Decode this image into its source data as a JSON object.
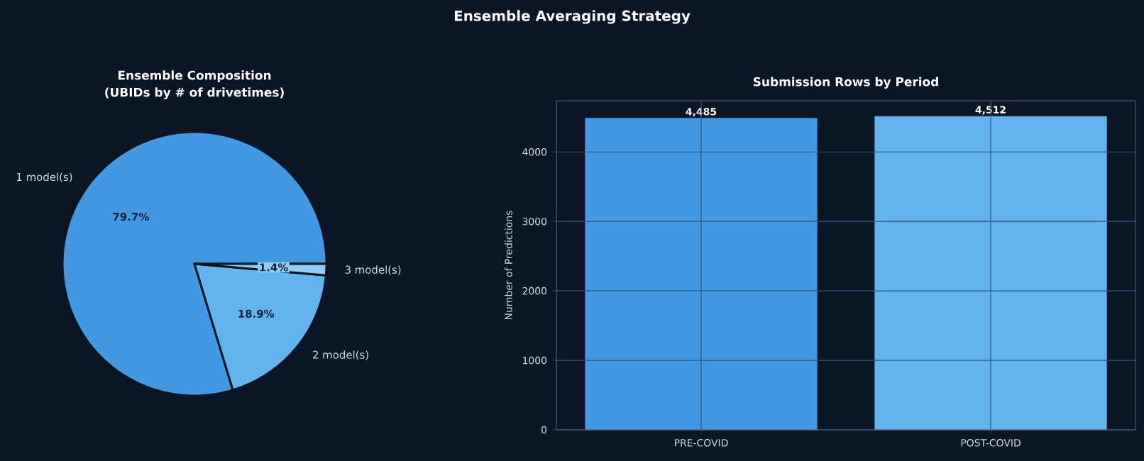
{
  "chart_data": [
    {
      "type": "pie",
      "title": "Ensemble Composition",
      "subtitle": "(UBIDs by # of drivetimes)",
      "annotations": [
        "Ensemble Averaging Strategy"
      ],
      "categories": [
        "1 model(s)",
        "2 model(s)",
        "3 model(s)"
      ],
      "values": [
        79.7,
        18.9,
        1.4
      ],
      "colors": [
        "#4299e1",
        "#63b3ed",
        "#90cdf4"
      ],
      "value_labels": [
        "79.7%",
        "18.9%",
        "1.4%"
      ]
    },
    {
      "type": "bar",
      "title": "Submission Rows by Period",
      "ylabel": "Number of Predictions",
      "categories": [
        "PRE-COVID",
        "POST-COVID"
      ],
      "values": [
        4485,
        4512
      ],
      "colors": [
        "#4299e1",
        "#63b3ed"
      ],
      "value_labels": [
        "4,485",
        "4,512"
      ],
      "ylim": [
        0,
        4738
      ],
      "yticks": [
        0,
        1000,
        2000,
        3000,
        4000
      ],
      "grid": true
    }
  ]
}
